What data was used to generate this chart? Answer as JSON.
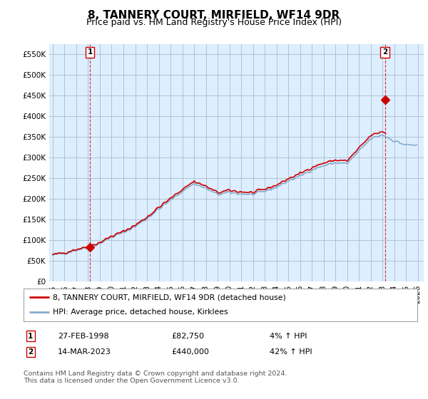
{
  "title": "8, TANNERY COURT, MIRFIELD, WF14 9DR",
  "subtitle": "Price paid vs. HM Land Registry's House Price Index (HPI)",
  "legend_label_red": "8, TANNERY COURT, MIRFIELD, WF14 9DR (detached house)",
  "legend_label_blue": "HPI: Average price, detached house, Kirklees",
  "annotation1_label": "1",
  "annotation1_date": "27-FEB-1998",
  "annotation1_price": "£82,750",
  "annotation1_hpi": "4% ↑ HPI",
  "annotation2_label": "2",
  "annotation2_date": "14-MAR-2023",
  "annotation2_price": "£440,000",
  "annotation2_hpi": "42% ↑ HPI",
  "footnote": "Contains HM Land Registry data © Crown copyright and database right 2024.\nThis data is licensed under the Open Government Licence v3.0.",
  "ylim": [
    0,
    575000
  ],
  "yticks": [
    0,
    50000,
    100000,
    150000,
    200000,
    250000,
    300000,
    350000,
    400000,
    450000,
    500000,
    550000
  ],
  "ytick_labels": [
    "£0",
    "£50K",
    "£100K",
    "£150K",
    "£200K",
    "£250K",
    "£300K",
    "£350K",
    "£400K",
    "£450K",
    "£500K",
    "£550K"
  ],
  "xlim_start": 1994.7,
  "xlim_end": 2026.5,
  "xtick_years": [
    1995,
    1996,
    1997,
    1998,
    1999,
    2000,
    2001,
    2002,
    2003,
    2004,
    2005,
    2006,
    2007,
    2008,
    2009,
    2010,
    2011,
    2012,
    2013,
    2014,
    2015,
    2016,
    2017,
    2018,
    2019,
    2020,
    2021,
    2022,
    2023,
    2024,
    2025,
    2026
  ],
  "color_red": "#cc0000",
  "color_blue": "#88aacc",
  "color_dashed_red": "#cc0000",
  "sale1_x": 1998.15,
  "sale1_y": 82750,
  "sale2_x": 2023.2,
  "sale2_y": 440000,
  "chart_bg": "#ddeeff",
  "background_color": "#ffffff",
  "grid_color": "#aabbcc",
  "title_fontsize": 11,
  "subtitle_fontsize": 9,
  "axis_fontsize": 7.5,
  "hpi_scale": 1.04
}
